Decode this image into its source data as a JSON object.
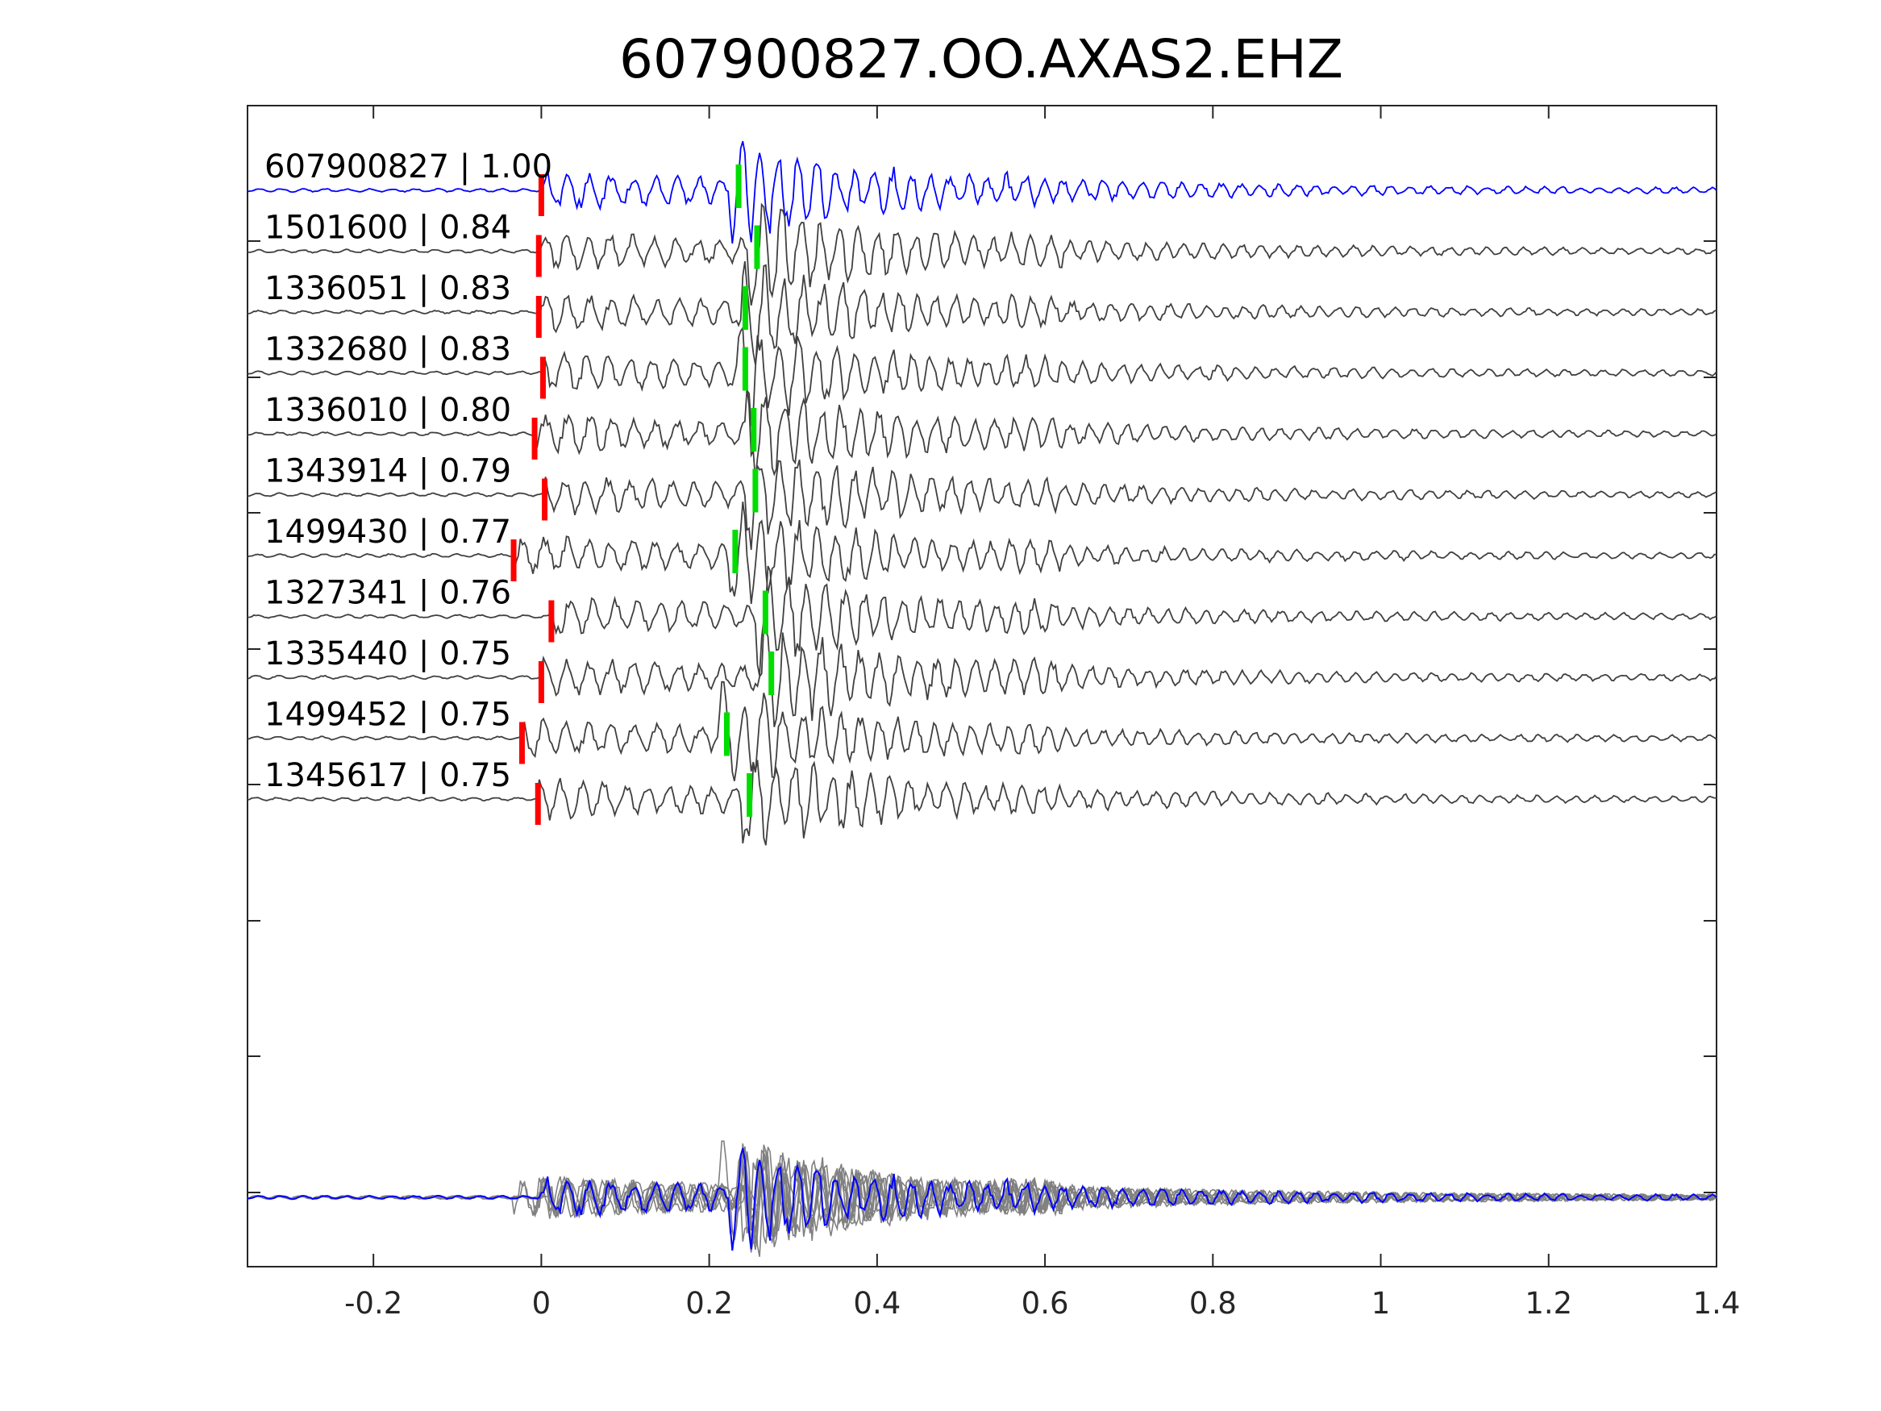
{
  "chart_data": {
    "type": "line",
    "title": "607900827.OO.AXAS2.EHZ",
    "xlabel": "",
    "ylabel": "",
    "xlim": [
      -0.35,
      1.4
    ],
    "x_ticks": [
      -0.2,
      0,
      0.2,
      0.4,
      0.6,
      0.8,
      1,
      1.2,
      1.4
    ],
    "x_tick_labels": [
      "-0.2",
      "0",
      "0.2",
      "0.4",
      "0.6",
      "0.8",
      "1",
      "1.2",
      "1.4"
    ],
    "grid": false,
    "colors": {
      "template": "#0000ff",
      "match": "#404040",
      "stack": "#808080",
      "p_pick": "#ff0000",
      "s_pick": "#00dd00"
    },
    "traces": [
      {
        "id": "607900827",
        "cc": "1.00",
        "label": "607900827 | 1.00",
        "p_time": 0.0,
        "s_time": 0.235,
        "template": true
      },
      {
        "id": "1501600",
        "cc": "0.84",
        "label": "1501600 | 0.84",
        "p_time": -0.003,
        "s_time": 0.257
      },
      {
        "id": "1336051",
        "cc": "0.83",
        "label": "1336051 | 0.83",
        "p_time": -0.003,
        "s_time": 0.243
      },
      {
        "id": "1332680",
        "cc": "0.83",
        "label": "1332680 | 0.83",
        "p_time": 0.002,
        "s_time": 0.243
      },
      {
        "id": "1336010",
        "cc": "0.80",
        "label": "1336010 | 0.80",
        "p_time": -0.008,
        "s_time": 0.253
      },
      {
        "id": "1343914",
        "cc": "0.79",
        "label": "1343914 | 0.79",
        "p_time": 0.004,
        "s_time": 0.255
      },
      {
        "id": "1499430",
        "cc": "0.77",
        "label": "1499430 | 0.77",
        "p_time": -0.033,
        "s_time": 0.231
      },
      {
        "id": "1327341",
        "cc": "0.76",
        "label": "1327341 | 0.76",
        "p_time": 0.012,
        "s_time": 0.267
      },
      {
        "id": "1335440",
        "cc": "0.75",
        "label": "1335440 | 0.75",
        "p_time": 0.0,
        "s_time": 0.274
      },
      {
        "id": "1499452",
        "cc": "0.75",
        "label": "1499452 | 0.75",
        "p_time": -0.023,
        "s_time": 0.221
      },
      {
        "id": "1345617",
        "cc": "0.75",
        "label": "1345617 | 0.75",
        "p_time": -0.004,
        "s_time": 0.248
      }
    ],
    "stack_row": {
      "description_visible": false
    }
  }
}
